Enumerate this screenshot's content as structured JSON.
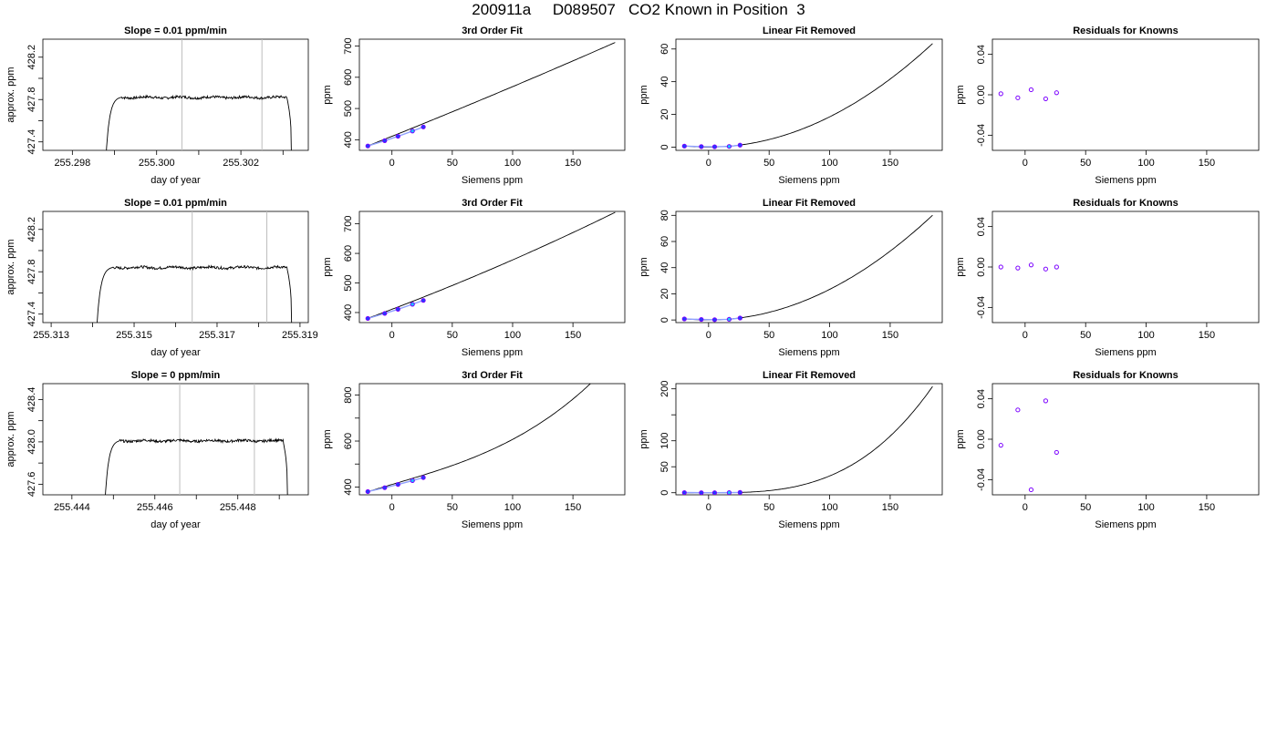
{
  "page": {
    "title": "200911a     D089507   CO2 Known in Position  3"
  },
  "colors": {
    "line": "#000000",
    "marker_edge": "#7b00ff",
    "marker_fill_blue": "#1f3fff",
    "marker_fill_cyan": "#19c4ff",
    "vline": "#bdbdbd",
    "fit_segment": "#8fa0ff"
  },
  "chart_data": [
    {
      "type": "line",
      "row": 0,
      "col": 0,
      "title": "Slope =  0.01  ppm/min",
      "xlabel": "day of year",
      "ylabel": "approx. ppm",
      "xlim": [
        255.2973,
        255.3036
      ],
      "ylim": [
        427.32,
        428.37
      ],
      "xticks": [
        255.298,
        255.299,
        255.3,
        255.301,
        255.302,
        255.303
      ],
      "xtick_labels": [
        "255.298",
        "",
        "255.300",
        "",
        "255.302",
        ""
      ],
      "yticks": [
        427.4,
        427.6,
        427.8,
        428.0,
        428.2
      ],
      "ytick_labels": [
        "427.4",
        "",
        "427.8",
        "",
        "428.2"
      ],
      "vlines": [
        255.3006,
        255.3025
      ],
      "trace": {
        "start": 255.2988,
        "end": 255.3032,
        "plateau": 427.82,
        "low": 427.32,
        "noise": 0.012
      }
    },
    {
      "type": "line",
      "row": 0,
      "col": 1,
      "title": "3rd Order Fit",
      "xlabel": "Siemens ppm",
      "ylabel": "ppm",
      "xlim": [
        -27,
        193
      ],
      "ylim": [
        366,
        722
      ],
      "xticks": [
        0,
        50,
        100,
        150
      ],
      "xtick_labels": [
        "0",
        "50",
        "100",
        "150"
      ],
      "yticks": [
        400,
        500,
        600,
        700
      ],
      "ytick_labels": [
        "400",
        "500",
        "600",
        "700"
      ],
      "curve": {
        "x_range": [
          -20,
          185
        ],
        "coef": [
          411.0,
          1.55,
          0.0004,
          0.0
        ]
      },
      "points": {
        "x": [
          -20,
          -6,
          5,
          17,
          26
        ],
        "y": [
          380,
          397,
          411,
          428,
          441
        ]
      }
    },
    {
      "type": "line",
      "row": 0,
      "col": 2,
      "title": "Linear Fit Removed",
      "xlabel": "Siemens ppm",
      "ylabel": "ppm",
      "xlim": [
        -27,
        193
      ],
      "ylim": [
        -2,
        66
      ],
      "xticks": [
        0,
        50,
        100,
        150
      ],
      "xtick_labels": [
        "0",
        "50",
        "100",
        "150"
      ],
      "yticks": [
        0,
        20,
        40,
        60
      ],
      "ytick_labels": [
        "0",
        "20",
        "40",
        "60"
      ],
      "curve": {
        "x_range": [
          -20,
          185
        ],
        "coef": [
          0.0,
          0.0,
          0.00185,
          0.0
        ]
      },
      "points": {
        "x": [
          -20,
          -6,
          5,
          17,
          26
        ],
        "y": [
          0.6,
          0.3,
          0.2,
          0.4,
          1.2
        ]
      }
    },
    {
      "type": "scatter",
      "row": 0,
      "col": 3,
      "title": "Residuals for Knowns",
      "xlabel": "Siemens ppm",
      "ylabel": "ppm",
      "xlim": [
        -27,
        193
      ],
      "ylim": [
        -0.055,
        0.055
      ],
      "xticks": [
        0,
        50,
        100,
        150
      ],
      "xtick_labels": [
        "0",
        "50",
        "100",
        "150"
      ],
      "yticks": [
        -0.04,
        0.0,
        0.04
      ],
      "ytick_labels": [
        "-0.04",
        "0.00",
        "0.04"
      ],
      "points": {
        "x": [
          -20,
          -6,
          5,
          17,
          26
        ],
        "y": [
          0.001,
          -0.003,
          0.005,
          -0.004,
          0.002
        ]
      }
    },
    {
      "type": "line",
      "row": 1,
      "col": 0,
      "title": "Slope =  0.01  ppm/min",
      "xlabel": "day of year",
      "ylabel": "approx. ppm",
      "xlim": [
        255.3128,
        255.3192
      ],
      "ylim": [
        427.32,
        428.37
      ],
      "xticks": [
        255.313,
        255.314,
        255.315,
        255.316,
        255.317,
        255.318,
        255.319
      ],
      "xtick_labels": [
        "255.313",
        "",
        "255.315",
        "",
        "255.317",
        "",
        "255.319"
      ],
      "yticks": [
        427.4,
        427.6,
        427.8,
        428.0,
        428.2
      ],
      "ytick_labels": [
        "427.4",
        "",
        "427.8",
        "",
        "428.2"
      ],
      "vlines": [
        255.3164,
        255.3182
      ],
      "trace": {
        "start": 255.3141,
        "end": 255.3188,
        "plateau": 427.84,
        "low": 427.32,
        "noise": 0.012
      }
    },
    {
      "type": "line",
      "row": 1,
      "col": 1,
      "title": "3rd Order Fit",
      "xlabel": "Siemens ppm",
      "ylabel": "ppm",
      "xlim": [
        -27,
        193
      ],
      "ylim": [
        366,
        742
      ],
      "xticks": [
        0,
        50,
        100,
        150
      ],
      "xtick_labels": [
        "0",
        "50",
        "100",
        "150"
      ],
      "yticks": [
        400,
        500,
        600,
        700
      ],
      "ytick_labels": [
        "400",
        "500",
        "600",
        "700"
      ],
      "curve": {
        "x_range": [
          -20,
          185
        ],
        "coef": [
          411.0,
          1.55,
          0.0012,
          0.0
        ]
      },
      "points": {
        "x": [
          -20,
          -6,
          5,
          17,
          26
        ],
        "y": [
          380,
          397,
          411,
          428,
          441
        ]
      }
    },
    {
      "type": "line",
      "row": 1,
      "col": 2,
      "title": "Linear Fit Removed",
      "xlabel": "Siemens ppm",
      "ylabel": "ppm",
      "xlim": [
        -27,
        193
      ],
      "ylim": [
        -2,
        83
      ],
      "xticks": [
        0,
        50,
        100,
        150
      ],
      "xtick_labels": [
        "0",
        "50",
        "100",
        "150"
      ],
      "yticks": [
        0,
        20,
        40,
        60,
        80
      ],
      "ytick_labels": [
        "0",
        "20",
        "40",
        "60",
        "80"
      ],
      "curve": {
        "x_range": [
          -20,
          185
        ],
        "coef": [
          0.0,
          0.0,
          0.00234,
          0.0
        ]
      },
      "points": {
        "x": [
          -20,
          -6,
          5,
          17,
          26
        ],
        "y": [
          0.8,
          0.4,
          0.2,
          0.5,
          1.5
        ]
      }
    },
    {
      "type": "scatter",
      "row": 1,
      "col": 3,
      "title": "Residuals for Knowns",
      "xlabel": "Siemens ppm",
      "ylabel": "ppm",
      "xlim": [
        -27,
        193
      ],
      "ylim": [
        -0.055,
        0.055
      ],
      "xticks": [
        0,
        50,
        100,
        150
      ],
      "xtick_labels": [
        "0",
        "50",
        "100",
        "150"
      ],
      "yticks": [
        -0.04,
        0.0,
        0.04
      ],
      "ytick_labels": [
        "-0.04",
        "0.00",
        "0.04"
      ],
      "points": {
        "x": [
          -20,
          -6,
          5,
          17,
          26
        ],
        "y": [
          0.0,
          -0.001,
          0.002,
          -0.002,
          0.0
        ]
      }
    },
    {
      "type": "line",
      "row": 2,
      "col": 0,
      "title": "Slope =  0  ppm/min",
      "xlabel": "day of year",
      "ylabel": "approx. ppm",
      "xlim": [
        255.4433,
        255.4497
      ],
      "ylim": [
        427.5,
        428.55
      ],
      "xticks": [
        255.444,
        255.445,
        255.446,
        255.447,
        255.448,
        255.449
      ],
      "xtick_labels": [
        "255.444",
        "",
        "255.446",
        "",
        "255.448",
        ""
      ],
      "yticks": [
        427.6,
        427.8,
        428.0,
        428.2,
        428.4
      ],
      "ytick_labels": [
        "427.6",
        "",
        "428.0",
        "",
        "428.4"
      ],
      "vlines": [
        255.4466,
        255.4484
      ],
      "trace": {
        "start": 255.4448,
        "end": 255.4492,
        "plateau": 428.01,
        "low": 427.5,
        "noise": 0.012
      }
    },
    {
      "type": "line",
      "row": 2,
      "col": 1,
      "title": "3rd Order Fit",
      "xlabel": "Siemens ppm",
      "ylabel": "ppm",
      "xlim": [
        -27,
        193
      ],
      "ylim": [
        366,
        850
      ],
      "xticks": [
        0,
        50,
        100,
        150
      ],
      "xtick_labels": [
        "0",
        "50",
        "100",
        "150"
      ],
      "yticks": [
        400,
        600,
        800
      ],
      "ytick_labels": [
        "400",
        "600",
        "800"
      ],
      "minor_yticks": [
        500,
        700
      ],
      "curve": {
        "x_range": [
          -20,
          185
        ],
        "coef": [
          411.0,
          1.55,
          0.0,
          4.13e-05
        ]
      },
      "points": {
        "x": [
          -20,
          -6,
          5,
          17,
          26
        ],
        "y": [
          380,
          397,
          411,
          428,
          441
        ]
      }
    },
    {
      "type": "line",
      "row": 2,
      "col": 2,
      "title": "Linear Fit Removed",
      "xlabel": "Siemens ppm",
      "ylabel": "ppm",
      "xlim": [
        -27,
        193
      ],
      "ylim": [
        -4,
        210
      ],
      "xticks": [
        0,
        50,
        100,
        150
      ],
      "xtick_labels": [
        "0",
        "50",
        "100",
        "150"
      ],
      "yticks": [
        0,
        50,
        100,
        200
      ],
      "ytick_labels": [
        "0",
        "50",
        "100",
        "200"
      ],
      "minor_yticks": [
        150
      ],
      "curve": {
        "x_range": [
          -20,
          185
        ],
        "coef": [
          0.0,
          0.0,
          0.0,
          3.23e-05
        ]
      },
      "points": {
        "x": [
          -20,
          -6,
          5,
          17,
          26
        ],
        "y": [
          0.3,
          0.1,
          0.0,
          0.2,
          0.6
        ]
      }
    },
    {
      "type": "scatter",
      "row": 2,
      "col": 3,
      "title": "Residuals for Knowns",
      "xlabel": "Siemens ppm",
      "ylabel": "ppm",
      "xlim": [
        -27,
        193
      ],
      "ylim": [
        -0.055,
        0.055
      ],
      "xticks": [
        0,
        50,
        100,
        150
      ],
      "xtick_labels": [
        "0",
        "50",
        "100",
        "150"
      ],
      "yticks": [
        -0.04,
        0.0,
        0.04
      ],
      "ytick_labels": [
        "-0.04",
        "0.00",
        "0.04"
      ],
      "points": {
        "x": [
          -20,
          -6,
          5,
          17,
          26
        ],
        "y": [
          -0.006,
          0.029,
          -0.05,
          0.038,
          -0.013
        ]
      }
    }
  ]
}
